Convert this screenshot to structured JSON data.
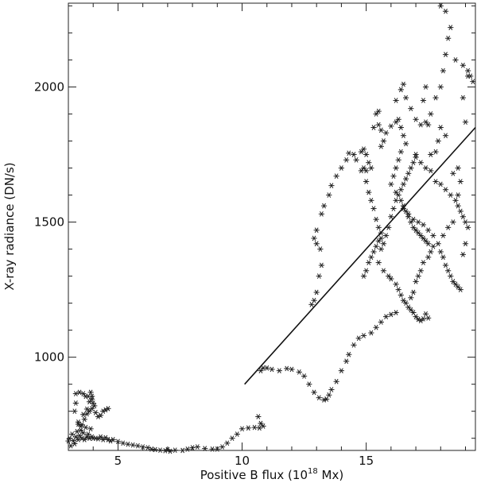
{
  "chart_data": {
    "type": "scatter",
    "xlabel_prefix": "Positive B flux (10",
    "xlabel_exponent": "18",
    "xlabel_suffix": " Mx)",
    "ylabel": "X-ray radiance (DN/s)",
    "xlim": [
      3.0,
      19.4
    ],
    "ylim": [
      655,
      2310
    ],
    "x_ticks": [
      5,
      10,
      15
    ],
    "x_tick_labels": [
      "5",
      "10",
      "15"
    ],
    "y_ticks": [
      1000,
      1500,
      2000
    ],
    "y_tick_labels": [
      "1000",
      "1500",
      "2000"
    ],
    "grid": false,
    "legend": "none",
    "marker": "asterisk",
    "series": [
      {
        "points": [
          [
            3.0,
            690
          ],
          [
            3.05,
            700
          ],
          [
            3.1,
            672
          ],
          [
            3.15,
            715
          ],
          [
            3.2,
            692
          ],
          [
            3.25,
            680
          ],
          [
            3.3,
            705
          ],
          [
            3.35,
            725
          ],
          [
            3.4,
            695
          ],
          [
            3.45,
            710
          ],
          [
            3.5,
            730
          ],
          [
            3.55,
            700
          ],
          [
            3.6,
            720
          ],
          [
            3.65,
            695
          ],
          [
            3.7,
            740
          ],
          [
            3.75,
            705
          ],
          [
            3.8,
            715
          ],
          [
            3.85,
            700
          ],
          [
            3.9,
            735
          ],
          [
            3.95,
            705
          ],
          [
            4.0,
            700
          ],
          [
            4.1,
            700
          ],
          [
            4.2,
            698
          ],
          [
            4.3,
            705
          ],
          [
            4.4,
            695
          ],
          [
            4.5,
            702
          ],
          [
            4.6,
            695
          ],
          [
            4.7,
            690
          ],
          [
            4.8,
            695
          ],
          [
            3.25,
            800
          ],
          [
            3.3,
            830
          ],
          [
            3.3,
            865
          ],
          [
            3.45,
            870
          ],
          [
            3.6,
            865
          ],
          [
            3.7,
            855
          ],
          [
            3.8,
            855
          ],
          [
            3.9,
            870
          ],
          [
            3.95,
            855
          ],
          [
            4.0,
            830
          ],
          [
            4.05,
            820
          ],
          [
            3.95,
            810
          ],
          [
            3.85,
            800
          ],
          [
            3.75,
            790
          ],
          [
            3.65,
            770
          ],
          [
            3.55,
            750
          ],
          [
            3.5,
            745
          ],
          [
            3.4,
            752
          ],
          [
            4.1,
            795
          ],
          [
            4.2,
            780
          ],
          [
            4.3,
            785
          ],
          [
            4.4,
            800
          ],
          [
            4.5,
            805
          ],
          [
            4.6,
            810
          ],
          [
            3.4,
            760
          ],
          [
            3.6,
            788
          ],
          [
            3.75,
            808
          ],
          [
            3.85,
            835
          ],
          [
            3.95,
            845
          ],
          [
            5.0,
            688
          ],
          [
            5.2,
            682
          ],
          [
            5.4,
            678
          ],
          [
            5.6,
            675
          ],
          [
            5.8,
            672
          ],
          [
            6.0,
            668
          ],
          [
            6.2,
            665
          ],
          [
            6.35,
            660
          ],
          [
            6.5,
            658
          ],
          [
            6.7,
            656
          ],
          [
            6.9,
            654
          ],
          [
            7.0,
            658
          ],
          [
            7.1,
            652
          ],
          [
            7.3,
            656
          ],
          [
            7.6,
            655
          ],
          [
            7.8,
            660
          ],
          [
            8.0,
            665
          ],
          [
            8.2,
            668
          ],
          [
            8.5,
            662
          ],
          [
            8.8,
            660
          ],
          [
            9.0,
            660
          ],
          [
            9.2,
            668
          ],
          [
            9.4,
            682
          ],
          [
            9.6,
            700
          ],
          [
            9.8,
            715
          ],
          [
            10.0,
            735
          ],
          [
            10.25,
            738
          ],
          [
            10.5,
            740
          ],
          [
            10.7,
            738
          ],
          [
            10.75,
            755
          ],
          [
            10.85,
            745
          ],
          [
            10.65,
            780
          ],
          [
            10.75,
            950
          ],
          [
            10.85,
            960
          ],
          [
            11.0,
            960
          ],
          [
            11.2,
            955
          ],
          [
            11.5,
            950
          ],
          [
            11.8,
            958
          ],
          [
            12.0,
            955
          ],
          [
            12.3,
            945
          ],
          [
            12.5,
            930
          ],
          [
            12.7,
            900
          ],
          [
            12.9,
            870
          ],
          [
            13.1,
            850
          ],
          [
            13.3,
            842
          ],
          [
            13.4,
            845
          ],
          [
            13.5,
            860
          ],
          [
            13.6,
            880
          ],
          [
            13.8,
            910
          ],
          [
            14.0,
            950
          ],
          [
            14.2,
            985
          ],
          [
            14.3,
            1010
          ],
          [
            14.5,
            1045
          ],
          [
            14.7,
            1070
          ],
          [
            14.9,
            1080
          ],
          [
            15.2,
            1090
          ],
          [
            15.4,
            1110
          ],
          [
            15.6,
            1130
          ],
          [
            15.8,
            1150
          ],
          [
            16.0,
            1158
          ],
          [
            16.2,
            1165
          ],
          [
            12.8,
            1195
          ],
          [
            12.9,
            1210
          ],
          [
            13.0,
            1240
          ],
          [
            13.1,
            1300
          ],
          [
            13.2,
            1340
          ],
          [
            13.15,
            1400
          ],
          [
            13.0,
            1420
          ],
          [
            12.9,
            1440
          ],
          [
            13.0,
            1470
          ],
          [
            13.2,
            1530
          ],
          [
            13.3,
            1560
          ],
          [
            13.5,
            1600
          ],
          [
            13.6,
            1635
          ],
          [
            13.8,
            1670
          ],
          [
            14.0,
            1700
          ],
          [
            14.2,
            1730
          ],
          [
            14.3,
            1755
          ],
          [
            14.5,
            1750
          ],
          [
            14.6,
            1730
          ],
          [
            14.8,
            1690
          ],
          [
            15.0,
            1650
          ],
          [
            15.1,
            1610
          ],
          [
            15.2,
            1580
          ],
          [
            15.3,
            1550
          ],
          [
            15.4,
            1510
          ],
          [
            15.5,
            1480
          ],
          [
            15.6,
            1460
          ],
          [
            14.8,
            1760
          ],
          [
            14.9,
            1770
          ],
          [
            15.0,
            1750
          ],
          [
            15.1,
            1720
          ],
          [
            15.2,
            1700
          ],
          [
            15.0,
            1690
          ],
          [
            14.9,
            1700
          ],
          [
            15.3,
            1850
          ],
          [
            15.5,
            1860
          ],
          [
            15.6,
            1840
          ],
          [
            15.4,
            1900
          ],
          [
            15.5,
            1910
          ],
          [
            15.5,
            1350
          ],
          [
            15.7,
            1320
          ],
          [
            15.9,
            1300
          ],
          [
            16.0,
            1290
          ],
          [
            16.2,
            1270
          ],
          [
            16.3,
            1250
          ],
          [
            16.4,
            1230
          ],
          [
            16.5,
            1210
          ],
          [
            16.6,
            1200
          ],
          [
            16.7,
            1185
          ],
          [
            16.8,
            1175
          ],
          [
            16.9,
            1165
          ],
          [
            17.0,
            1150
          ],
          [
            17.1,
            1140
          ],
          [
            17.2,
            1135
          ],
          [
            17.3,
            1142
          ],
          [
            17.4,
            1160
          ],
          [
            17.5,
            1145
          ],
          [
            15.6,
            1780
          ],
          [
            15.7,
            1800
          ],
          [
            15.8,
            1830
          ],
          [
            16.0,
            1855
          ],
          [
            16.2,
            1870
          ],
          [
            16.3,
            1880
          ],
          [
            16.4,
            1850
          ],
          [
            16.5,
            1820
          ],
          [
            16.6,
            1790
          ],
          [
            16.4,
            1760
          ],
          [
            16.3,
            1730
          ],
          [
            16.2,
            1700
          ],
          [
            16.1,
            1670
          ],
          [
            16.0,
            1640
          ],
          [
            16.2,
            1610
          ],
          [
            16.4,
            1580
          ],
          [
            16.5,
            1560
          ],
          [
            16.6,
            1540
          ],
          [
            16.7,
            1520
          ],
          [
            16.8,
            1500
          ],
          [
            16.9,
            1480
          ],
          [
            17.0,
            1470
          ],
          [
            17.1,
            1460
          ],
          [
            17.2,
            1450
          ],
          [
            17.3,
            1440
          ],
          [
            17.4,
            1430
          ],
          [
            17.5,
            1420
          ],
          [
            16.2,
            1950
          ],
          [
            16.4,
            1990
          ],
          [
            16.5,
            2010
          ],
          [
            16.6,
            1960
          ],
          [
            16.8,
            1920
          ],
          [
            17.0,
            1880
          ],
          [
            17.2,
            1860
          ],
          [
            17.4,
            1870
          ],
          [
            17.6,
            1900
          ],
          [
            17.8,
            1960
          ],
          [
            18.0,
            2000
          ],
          [
            18.1,
            2060
          ],
          [
            18.2,
            2120
          ],
          [
            18.3,
            2180
          ],
          [
            18.4,
            2220
          ],
          [
            18.2,
            2280
          ],
          [
            18.0,
            2300
          ],
          [
            18.6,
            2100
          ],
          [
            18.9,
            2080
          ],
          [
            19.1,
            2060
          ],
          [
            19.2,
            2040
          ],
          [
            19.3,
            2020
          ],
          [
            17.0,
            1750
          ],
          [
            17.2,
            1720
          ],
          [
            17.4,
            1700
          ],
          [
            17.6,
            1690
          ],
          [
            17.8,
            1650
          ],
          [
            18.0,
            1640
          ],
          [
            18.2,
            1620
          ],
          [
            18.4,
            1600
          ],
          [
            18.6,
            1580
          ],
          [
            18.7,
            1560
          ],
          [
            18.8,
            1540
          ],
          [
            18.9,
            1520
          ],
          [
            19.0,
            1500
          ],
          [
            19.1,
            1480
          ],
          [
            16.5,
            1550
          ],
          [
            16.7,
            1530
          ],
          [
            16.9,
            1510
          ],
          [
            17.1,
            1500
          ],
          [
            17.3,
            1490
          ],
          [
            17.5,
            1470
          ],
          [
            17.7,
            1450
          ],
          [
            17.9,
            1420
          ],
          [
            18.0,
            1390
          ],
          [
            18.1,
            1370
          ],
          [
            18.2,
            1340
          ],
          [
            18.3,
            1320
          ],
          [
            18.4,
            1300
          ],
          [
            18.5,
            1280
          ],
          [
            18.6,
            1270
          ],
          [
            18.7,
            1260
          ],
          [
            18.8,
            1250
          ],
          [
            15.6,
            1400
          ],
          [
            15.7,
            1420
          ],
          [
            15.8,
            1450
          ],
          [
            15.9,
            1480
          ],
          [
            16.0,
            1520
          ],
          [
            16.1,
            1550
          ],
          [
            16.2,
            1580
          ],
          [
            16.3,
            1600
          ],
          [
            16.4,
            1620
          ],
          [
            16.5,
            1640
          ],
          [
            16.6,
            1660
          ],
          [
            16.7,
            1680
          ],
          [
            16.8,
            1700
          ],
          [
            16.9,
            1720
          ],
          [
            17.0,
            1740
          ],
          [
            14.9,
            1300
          ],
          [
            15.0,
            1320
          ],
          [
            15.1,
            1350
          ],
          [
            15.2,
            1370
          ],
          [
            15.3,
            1390
          ],
          [
            15.4,
            1410
          ],
          [
            15.5,
            1430
          ],
          [
            15.6,
            1440
          ],
          [
            17.8,
            1760
          ],
          [
            17.9,
            1800
          ],
          [
            18.0,
            1850
          ],
          [
            18.2,
            1820
          ],
          [
            18.5,
            1680
          ],
          [
            18.7,
            1700
          ],
          [
            18.8,
            1650
          ],
          [
            19.0,
            1870
          ],
          [
            18.9,
            1960
          ],
          [
            19.1,
            2040
          ],
          [
            17.6,
            1750
          ],
          [
            17.5,
            1860
          ],
          [
            17.3,
            1950
          ],
          [
            17.4,
            2000
          ],
          [
            16.8,
            1220
          ],
          [
            16.9,
            1240
          ],
          [
            17.0,
            1280
          ],
          [
            17.1,
            1300
          ],
          [
            17.2,
            1320
          ],
          [
            17.3,
            1350
          ],
          [
            17.5,
            1370
          ],
          [
            17.6,
            1390
          ],
          [
            17.7,
            1410
          ],
          [
            18.1,
            1450
          ],
          [
            18.3,
            1480
          ],
          [
            18.5,
            1500
          ],
          [
            18.7,
            1600
          ],
          [
            19.0,
            1420
          ],
          [
            18.9,
            1380
          ]
        ]
      }
    ],
    "fit_line": {
      "x": [
        10.1,
        19.4
      ],
      "y": [
        900,
        1850
      ]
    }
  }
}
